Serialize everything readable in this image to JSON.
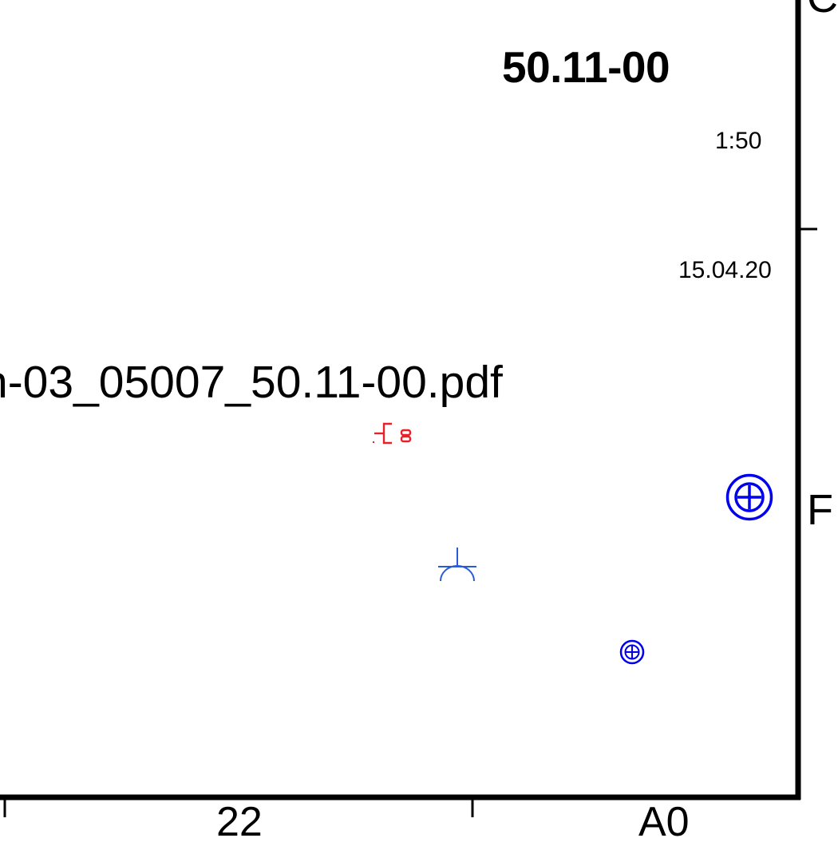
{
  "title_block": {
    "drawing_number": "50.11-00",
    "scale": "1:50",
    "date": "15.04.20"
  },
  "file": {
    "name": "n-03_05007_50.11-00.pdf"
  },
  "frame": {
    "right_edge_char": "F",
    "top_edge_char": "C",
    "bottom_label_left": "22",
    "bottom_label_right": "A0"
  },
  "symbols": [
    {
      "name": "distribution-box-icon",
      "color": "#e8202a"
    },
    {
      "name": "socket-outlet-icon",
      "color": "#2a5bd7"
    },
    {
      "name": "earth-point-large-icon",
      "color": "#0000ee"
    },
    {
      "name": "earth-point-small-icon",
      "color": "#0000ee"
    }
  ],
  "colors": {
    "line": "#000000",
    "red_symbol": "#e8202a",
    "blue_symbol": "#2a5bd7",
    "deep_blue_symbol": "#0000ee"
  }
}
